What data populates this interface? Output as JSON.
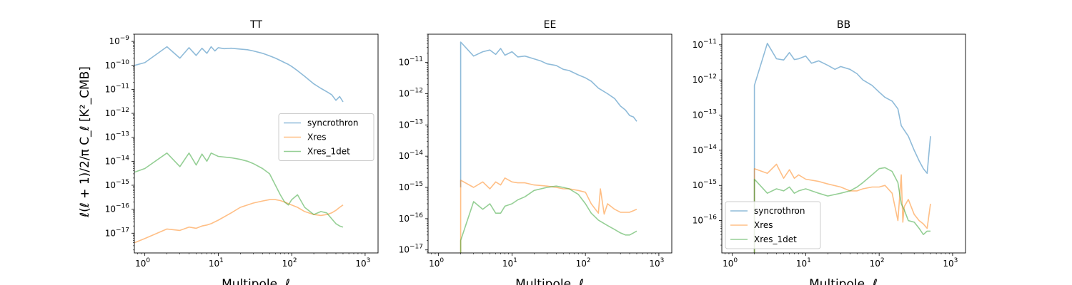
{
  "figure": {
    "ylabel": "ℓ(ℓ + 1)/2/π C_ℓ [K²_CMB]",
    "xlabel": "Multipole, ℓ"
  },
  "chart_data": [
    {
      "type": "line",
      "title": "TT",
      "xscale": "log",
      "yscale": "log",
      "xlim": [
        0.72,
        1500
      ],
      "ylim": [
        1.5e-18,
        2e-09
      ],
      "xticks": [
        {
          "v": 1,
          "base": "10",
          "exp": "0"
        },
        {
          "v": 10,
          "base": "10",
          "exp": "1"
        },
        {
          "v": 100,
          "base": "10",
          "exp": "2"
        },
        {
          "v": 1000,
          "base": "10",
          "exp": "3"
        }
      ],
      "yticks": [
        {
          "v": 1e-17,
          "base": "10",
          "exp": "−17"
        },
        {
          "v": 1e-16,
          "base": "10",
          "exp": "−16"
        },
        {
          "v": 1e-15,
          "base": "10",
          "exp": "−15"
        },
        {
          "v": 1e-14,
          "base": "10",
          "exp": "−14"
        },
        {
          "v": 1e-13,
          "base": "10",
          "exp": "−13"
        },
        {
          "v": 1e-12,
          "base": "10",
          "exp": "−12"
        },
        {
          "v": 1e-11,
          "base": "10",
          "exp": "−11"
        },
        {
          "v": 1e-10,
          "base": "10",
          "exp": "−10"
        },
        {
          "v": 1e-09,
          "base": "10",
          "exp": "−9"
        }
      ],
      "legend": "center-right",
      "series": [
        {
          "name": "syncrothron",
          "color": "#1f77b4",
          "x": [
            0.72,
            1,
            2,
            3,
            4,
            5,
            6,
            7,
            8,
            9,
            10,
            12,
            15,
            20,
            25,
            30,
            40,
            50,
            60,
            70,
            80,
            90,
            100,
            120,
            150,
            200,
            250,
            300,
            350,
            400,
            450,
            500
          ],
          "y": [
            1e-10,
            1.3e-10,
            6e-10,
            2e-10,
            5.5e-10,
            2.6e-10,
            5.2e-10,
            3.2e-10,
            6e-10,
            4e-10,
            5.5e-10,
            5e-10,
            5.2e-10,
            4.8e-10,
            4.5e-10,
            4e-10,
            3.2e-10,
            2.5e-10,
            2e-10,
            1.6e-10,
            1.3e-10,
            1.1e-10,
            9e-11,
            6e-11,
            3.5e-11,
            1.7e-11,
            1.1e-11,
            8e-12,
            6e-12,
            3.5e-12,
            5e-12,
            3e-12
          ]
        },
        {
          "name": "Xres",
          "color": "#ff7f0e",
          "x": [
            0.72,
            1,
            2,
            3,
            4,
            5,
            6,
            7,
            8,
            10,
            15,
            20,
            30,
            40,
            50,
            60,
            70,
            80,
            90,
            100,
            120,
            150,
            200,
            250,
            300,
            350,
            400,
            450,
            500
          ],
          "y": [
            4e-18,
            6e-18,
            1.5e-17,
            1.3e-17,
            1.8e-17,
            1.6e-17,
            2e-17,
            2.2e-17,
            2.5e-17,
            3.5e-17,
            7e-17,
            1.2e-16,
            1.8e-16,
            2.2e-16,
            2.5e-16,
            2.5e-16,
            2.3e-16,
            2e-16,
            1.7e-16,
            1.5e-16,
            1.2e-16,
            8e-17,
            6e-17,
            5.5e-17,
            6e-17,
            7e-17,
            9e-17,
            1.2e-16,
            1.5e-16
          ]
        },
        {
          "name": "Xres_1det",
          "color": "#2ca02c",
          "x": [
            0.72,
            1,
            2,
            3,
            4,
            5,
            6,
            7,
            8,
            10,
            15,
            20,
            25,
            30,
            40,
            50,
            60,
            70,
            80,
            90,
            100,
            120,
            150,
            200,
            250,
            300,
            350,
            400,
            450,
            500
          ],
          "y": [
            3.5e-15,
            5e-15,
            2.2e-14,
            6e-15,
            2.2e-14,
            7e-15,
            2e-14,
            1e-14,
            2.2e-14,
            1.6e-14,
            1.4e-14,
            1.2e-14,
            1e-14,
            8e-15,
            5e-15,
            3e-15,
            1e-15,
            4e-16,
            2e-16,
            1.5e-16,
            2.5e-16,
            4e-16,
            1.2e-16,
            6e-17,
            8e-17,
            7e-17,
            4e-17,
            2.5e-17,
            2e-17,
            1.8e-17
          ]
        }
      ]
    },
    {
      "type": "line",
      "title": "EE",
      "xscale": "log",
      "yscale": "log",
      "xlim": [
        0.72,
        1500
      ],
      "ylim": [
        8e-18,
        8e-11
      ],
      "xticks": [
        {
          "v": 1,
          "base": "10",
          "exp": "0"
        },
        {
          "v": 10,
          "base": "10",
          "exp": "1"
        },
        {
          "v": 100,
          "base": "10",
          "exp": "2"
        },
        {
          "v": 1000,
          "base": "10",
          "exp": "3"
        }
      ],
      "yticks": [
        {
          "v": 1e-17,
          "base": "10",
          "exp": "−17"
        },
        {
          "v": 1e-16,
          "base": "10",
          "exp": "−16"
        },
        {
          "v": 1e-15,
          "base": "10",
          "exp": "−15"
        },
        {
          "v": 1e-14,
          "base": "10",
          "exp": "−14"
        },
        {
          "v": 1e-13,
          "base": "10",
          "exp": "−13"
        },
        {
          "v": 1e-12,
          "base": "10",
          "exp": "−12"
        },
        {
          "v": 1e-11,
          "base": "10",
          "exp": "−11"
        }
      ],
      "legend": "none",
      "series": [
        {
          "name": "syncrothron",
          "color": "#1f77b4",
          "x": [
            2,
            2,
            3,
            4,
            5,
            6,
            7,
            8,
            10,
            12,
            15,
            20,
            25,
            30,
            40,
            50,
            60,
            80,
            100,
            120,
            150,
            200,
            250,
            300,
            350,
            400,
            450,
            500
          ],
          "y": [
            1e-15,
            4.5e-11,
            1.6e-11,
            2.2e-11,
            2.5e-11,
            1.8e-11,
            2.8e-11,
            1.7e-11,
            2.2e-11,
            1.5e-11,
            1.6e-11,
            1.3e-11,
            1.1e-11,
            9e-12,
            8e-12,
            6e-12,
            5.5e-12,
            4e-12,
            3.2e-12,
            2.5e-12,
            1.5e-12,
            1e-12,
            7e-13,
            4e-13,
            3e-13,
            2e-13,
            1.8e-13,
            1.3e-13
          ]
        },
        {
          "name": "Xres",
          "color": "#ff7f0e",
          "x": [
            2,
            2,
            3,
            4,
            5,
            6,
            7,
            8,
            10,
            12,
            15,
            20,
            30,
            40,
            50,
            60,
            80,
            100,
            120,
            150,
            160,
            180,
            200,
            250,
            300,
            350,
            400,
            450,
            500
          ],
          "y": [
            8e-18,
            1.7e-15,
            1e-15,
            1.5e-15,
            9e-16,
            1.5e-15,
            1.2e-15,
            2e-15,
            1.5e-15,
            1.4e-15,
            1.4e-15,
            1.2e-15,
            1.1e-15,
            1e-15,
            9e-16,
            9e-16,
            8e-16,
            7e-16,
            3e-16,
            1.5e-16,
            9e-16,
            1.4e-16,
            3e-16,
            2e-16,
            1.6e-16,
            1.6e-16,
            1.6e-16,
            1.8e-16,
            2e-16
          ]
        },
        {
          "name": "Xres_1det",
          "color": "#2ca02c",
          "x": [
            2,
            2,
            3,
            4,
            5,
            6,
            7,
            8,
            10,
            12,
            15,
            20,
            30,
            40,
            50,
            60,
            80,
            100,
            120,
            150,
            200,
            250,
            300,
            350,
            400,
            450,
            500
          ],
          "y": [
            8e-18,
            2e-17,
            3.5e-16,
            2e-16,
            3e-16,
            1.5e-16,
            1.5e-16,
            2.5e-16,
            3e-16,
            4e-16,
            5e-16,
            8e-16,
            1e-15,
            1.1e-15,
            1e-15,
            9e-16,
            6e-16,
            3e-16,
            1.5e-16,
            9e-17,
            6e-17,
            4.5e-17,
            3.5e-17,
            3e-17,
            3e-17,
            3.5e-17,
            4e-17
          ]
        }
      ]
    },
    {
      "type": "line",
      "title": "BB",
      "xscale": "log",
      "yscale": "log",
      "xlim": [
        0.72,
        1500
      ],
      "ylim": [
        1.2e-17,
        2e-11
      ],
      "xticks": [
        {
          "v": 1,
          "base": "10",
          "exp": "0"
        },
        {
          "v": 10,
          "base": "10",
          "exp": "1"
        },
        {
          "v": 100,
          "base": "10",
          "exp": "2"
        },
        {
          "v": 1000,
          "base": "10",
          "exp": "3"
        }
      ],
      "yticks": [
        {
          "v": 1e-16,
          "base": "10",
          "exp": "−16"
        },
        {
          "v": 1e-15,
          "base": "10",
          "exp": "−15"
        },
        {
          "v": 1e-14,
          "base": "10",
          "exp": "−14"
        },
        {
          "v": 1e-13,
          "base": "10",
          "exp": "−13"
        },
        {
          "v": 1e-12,
          "base": "10",
          "exp": "−12"
        },
        {
          "v": 1e-11,
          "base": "10",
          "exp": "−11"
        }
      ],
      "legend": "lower-left",
      "series": [
        {
          "name": "syncrothron",
          "color": "#1f77b4",
          "x": [
            2,
            2,
            3,
            4,
            5,
            6,
            7,
            8,
            10,
            12,
            15,
            20,
            25,
            30,
            40,
            50,
            60,
            80,
            100,
            120,
            150,
            180,
            200,
            250,
            300,
            350,
            400,
            450,
            500
          ],
          "y": [
            1.2e-17,
            7e-13,
            1.1e-11,
            4e-12,
            3.7e-12,
            6e-12,
            3.8e-12,
            4e-12,
            4.8e-12,
            3e-12,
            3.5e-12,
            2.6e-12,
            2e-12,
            2.4e-12,
            2e-12,
            1.5e-12,
            1e-12,
            7e-13,
            4.5e-13,
            3.2e-13,
            2.5e-13,
            1.5e-13,
            5e-14,
            2.5e-14,
            1e-14,
            5e-15,
            3e-15,
            2.2e-15,
            2.5e-14
          ]
        },
        {
          "name": "Xres",
          "color": "#ff7f0e",
          "x": [
            2,
            2,
            3,
            4,
            5,
            6,
            7,
            8,
            10,
            15,
            20,
            30,
            40,
            50,
            60,
            80,
            100,
            120,
            150,
            180,
            200,
            210,
            220,
            250,
            300,
            350,
            400,
            450,
            500
          ],
          "y": [
            1.2e-17,
            3e-15,
            2.2e-15,
            4e-15,
            1.6e-15,
            2.8e-15,
            1.6e-15,
            2e-15,
            1.5e-15,
            1.3e-15,
            1.1e-15,
            9e-16,
            7e-16,
            7e-16,
            8e-16,
            9e-16,
            9e-16,
            1e-15,
            6e-16,
            1e-16,
            2e-15,
            9e-17,
            2.5e-16,
            4e-16,
            1.5e-16,
            1e-16,
            8e-17,
            6e-17,
            3e-16
          ]
        },
        {
          "name": "Xres_1det",
          "color": "#2ca02c",
          "x": [
            2,
            2,
            3,
            4,
            5,
            6,
            7,
            8,
            10,
            15,
            20,
            30,
            40,
            50,
            60,
            80,
            100,
            120,
            150,
            180,
            200,
            220,
            250,
            300,
            350,
            400,
            450,
            500
          ],
          "y": [
            1.2e-17,
            1.5e-15,
            6e-16,
            8e-16,
            7e-16,
            9e-16,
            6e-16,
            7e-16,
            8e-16,
            6e-16,
            5e-16,
            6e-16,
            7e-16,
            9e-16,
            1.2e-15,
            2e-15,
            3e-15,
            3.2e-15,
            2.5e-15,
            1.2e-15,
            3e-16,
            2e-16,
            1e-16,
            9e-17,
            6e-17,
            4e-17,
            5e-17,
            5e-17
          ]
        }
      ]
    }
  ]
}
